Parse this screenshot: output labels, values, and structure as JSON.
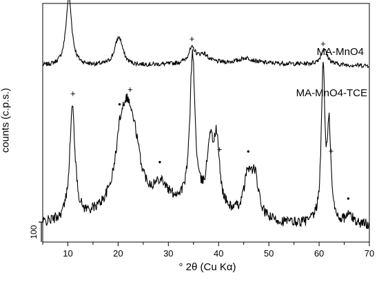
{
  "chart_data": {
    "type": "line",
    "xlabel": "° 2θ (Cu Kα)",
    "ylabel": "counts (c.p.s.)",
    "xlim": [
      5,
      70
    ],
    "x_ticks": [
      10,
      20,
      30,
      40,
      50,
      60,
      70
    ],
    "scale_bar_label": "100",
    "series": [
      {
        "name": "MA-MnO4",
        "peaks": [
          {
            "x": 10.2,
            "height": 80,
            "width": 0.7
          },
          {
            "x": 20.0,
            "height": 28,
            "width": 0.9
          },
          {
            "x": 20.6,
            "height": 8,
            "width": 0.6
          },
          {
            "x": 34.7,
            "height": 17,
            "width": 0.9
          },
          {
            "x": 37.0,
            "height": 10,
            "width": 1.2
          },
          {
            "x": 45.5,
            "height": 6,
            "width": 1.8
          },
          {
            "x": 61.0,
            "height": 18,
            "width": 0.8
          }
        ]
      },
      {
        "name": "MA-MnO4-TCE",
        "peaks": [
          {
            "x": 10.9,
            "height": 130,
            "width": 0.65
          },
          {
            "x": 21.7,
            "height": 120,
            "width": 2.0
          },
          {
            "x": 20.3,
            "height": 25,
            "width": 0.8
          },
          {
            "x": 23.5,
            "height": 25,
            "width": 1.0
          },
          {
            "x": 28.5,
            "height": 20,
            "width": 1.3
          },
          {
            "x": 34.8,
            "height": 175,
            "width": 0.6
          },
          {
            "x": 38.3,
            "height": 70,
            "width": 0.7
          },
          {
            "x": 39.6,
            "height": 75,
            "width": 0.7
          },
          {
            "x": 45.8,
            "height": 45,
            "width": 0.9
          },
          {
            "x": 47.2,
            "height": 45,
            "width": 0.9
          },
          {
            "x": 60.8,
            "height": 180,
            "width": 0.42
          },
          {
            "x": 62.0,
            "height": 105,
            "width": 0.42
          },
          {
            "x": 66.0,
            "height": 10,
            "width": 0.9
          }
        ],
        "markers": [
          {
            "x": 11.0,
            "symbol": "+"
          },
          {
            "x": 20.3,
            "symbol": "•"
          },
          {
            "x": 22.4,
            "symbol": "+"
          },
          {
            "x": 28.3,
            "symbol": "•"
          },
          {
            "x": 34.7,
            "symbol": "+"
          },
          {
            "x": 40.2,
            "symbol": "+"
          },
          {
            "x": 45.9,
            "symbol": "•"
          },
          {
            "x": 60.8,
            "symbol": "+"
          },
          {
            "x": 62.4,
            "symbol": "+"
          },
          {
            "x": 65.8,
            "symbol": "•"
          }
        ]
      }
    ]
  }
}
